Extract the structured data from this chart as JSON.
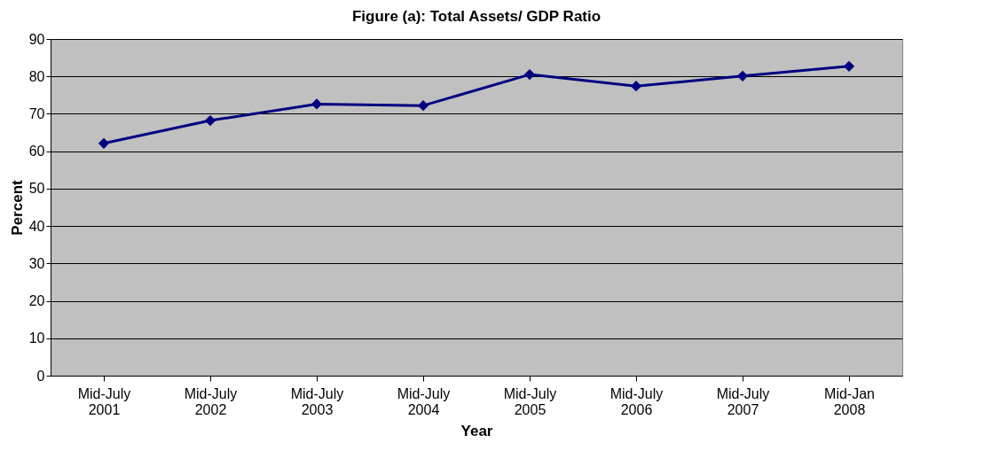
{
  "chart_data": {
    "type": "line",
    "title": "Figure (a): Total Assets/ GDP Ratio",
    "xlabel": "Year",
    "ylabel": "Percent",
    "categories": [
      "Mid-July 2001",
      "Mid-July 2002",
      "Mid-July 2003",
      "Mid-July 2004",
      "Mid-July 2005",
      "Mid-July 2006",
      "Mid-July 2007",
      "Mid-Jan 2008"
    ],
    "series": [
      {
        "color": "#000080",
        "values": [
          62.1,
          68.2,
          72.6,
          72.2,
          80.5,
          77.4,
          80.1,
          82.7
        ]
      }
    ],
    "ylim": [
      0,
      90
    ],
    "yticks": [
      0,
      10,
      20,
      30,
      40,
      50,
      60,
      70,
      80,
      90
    ],
    "grid": "y",
    "legend": false,
    "marker": "diamond",
    "line_style": "solid"
  }
}
